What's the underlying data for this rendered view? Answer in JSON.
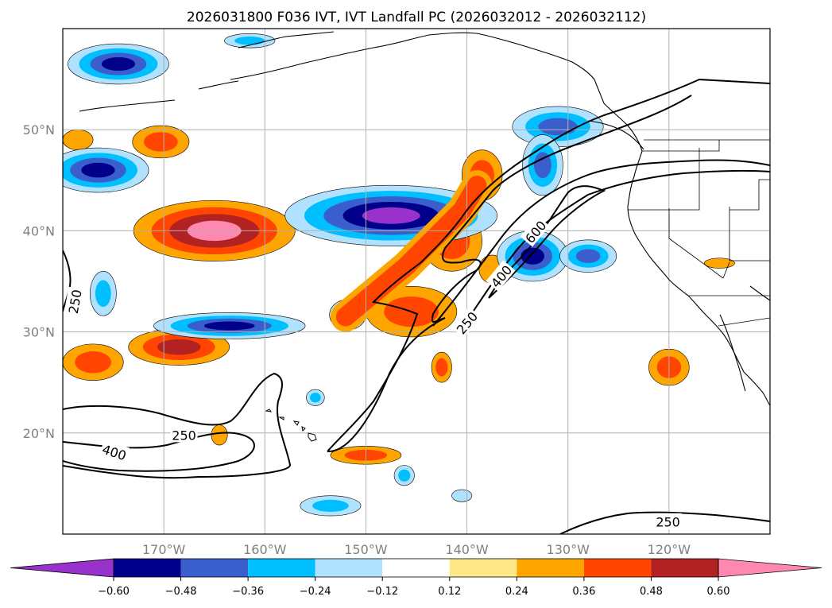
{
  "chart_data": {
    "type": "filled-contour-map",
    "title": "2026031800 F036 IVT, IVT Landfall PC (2026032012 - 2026032112)",
    "lon_range": [
      -180,
      -110
    ],
    "lat_range": [
      10,
      60
    ],
    "grid": true,
    "lat_ticks": [
      {
        "value": 50,
        "label": "50°N"
      },
      {
        "value": 40,
        "label": "40°N"
      },
      {
        "value": 30,
        "label": "30°N"
      },
      {
        "value": 20,
        "label": "20°N"
      }
    ],
    "lon_ticks": [
      {
        "value": -170,
        "label": "170°W"
      },
      {
        "value": -160,
        "label": "160°W"
      },
      {
        "value": -150,
        "label": "150°W"
      },
      {
        "value": -140,
        "label": "140°W"
      },
      {
        "value": -130,
        "label": "130°W"
      },
      {
        "value": -120,
        "label": "120°W"
      }
    ],
    "colorbar": {
      "extend": "both",
      "levels": [
        -0.6,
        -0.48,
        -0.36,
        -0.24,
        -0.12,
        0.12,
        0.24,
        0.36,
        0.48,
        0.6
      ],
      "labels": [
        "−0.60",
        "−0.48",
        "−0.36",
        "−0.24",
        "−0.12",
        "0.12",
        "0.24",
        "0.36",
        "0.48",
        "0.60"
      ],
      "colors": [
        "#9932cc",
        "#00008b",
        "#3a5fcd",
        "#00bfff",
        "#b0e2ff",
        "#ffffff",
        "#ffe888",
        "#ffa500",
        "#ff4500",
        "#b22222",
        "#ff88b0"
      ]
    },
    "ivt_contours": [
      {
        "value": 250,
        "label": "250"
      },
      {
        "value": 400,
        "label": "400"
      },
      {
        "value": 600,
        "label": "600"
      }
    ],
    "contour_label_instances": [
      {
        "label": "250",
        "lon": -178.8,
        "lat": 33.0,
        "rotate": -80
      },
      {
        "label": "250",
        "lon": -168.0,
        "lat": 19.8,
        "rotate": 0
      },
      {
        "label": "400",
        "lon": -174.9,
        "lat": 18.1,
        "rotate": 18
      },
      {
        "label": "250",
        "lon": -140.0,
        "lat": 30.9,
        "rotate": -50
      },
      {
        "label": "400",
        "lon": -136.6,
        "lat": 35.5,
        "rotate": -50
      },
      {
        "label": "600",
        "lon": -133.2,
        "lat": 39.9,
        "rotate": -50
      },
      {
        "label": "250",
        "lon": -120.1,
        "lat": 11.2,
        "rotate": 0
      }
    ],
    "pc_regions": [
      {
        "lon": -165,
        "lat": 40.0,
        "rlon": 8.0,
        "rlat": 3.0,
        "levels": [
          0.24,
          0.36,
          0.48,
          0.6
        ]
      },
      {
        "lon": -170.3,
        "lat": 48.8,
        "rlon": 2.8,
        "rlat": 1.6,
        "levels": [
          0.24,
          0.36
        ]
      },
      {
        "lon": -168.5,
        "lat": 28.5,
        "rlon": 5.0,
        "rlat": 1.8,
        "levels": [
          0.24,
          0.36,
          0.48
        ]
      },
      {
        "lon": -177.0,
        "lat": 27.0,
        "rlon": 3.0,
        "rlat": 1.8,
        "levels": [
          0.24,
          0.36
        ]
      },
      {
        "lon": -145.5,
        "lat": 32.0,
        "rlon": 4.5,
        "rlat": 2.5,
        "levels": [
          0.24,
          0.36
        ]
      },
      {
        "lon": -141.5,
        "lat": 39.0,
        "rlon": 3.0,
        "rlat": 3.0,
        "levels": [
          0.24,
          0.36
        ]
      },
      {
        "lon": -138.5,
        "lat": 45.5,
        "rlon": 2.0,
        "rlat": 2.5,
        "levels": [
          0.24,
          0.36
        ]
      },
      {
        "lon": -137.5,
        "lat": 36.2,
        "rlon": 1.3,
        "rlat": 1.4,
        "levels": [
          0.24
        ]
      },
      {
        "lon": -142.5,
        "lat": 26.5,
        "rlon": 1.0,
        "rlat": 1.5,
        "levels": [
          0.24,
          0.36
        ]
      },
      {
        "lon": -164.5,
        "lat": 19.8,
        "rlon": 0.8,
        "rlat": 1.0,
        "levels": [
          0.24
        ]
      },
      {
        "lon": -150.0,
        "lat": 17.8,
        "rlon": 3.5,
        "rlat": 0.9,
        "levels": [
          0.24,
          0.36
        ]
      },
      {
        "lon": -115.0,
        "lat": 36.8,
        "rlon": 1.5,
        "rlat": 0.5,
        "levels": [
          0.24
        ]
      },
      {
        "lon": -120.0,
        "lat": 26.5,
        "rlon": 2.0,
        "rlat": 1.8,
        "levels": [
          0.24,
          0.36
        ]
      },
      {
        "lon": -178.5,
        "lat": 49.0,
        "rlon": 1.5,
        "rlat": 1.0,
        "levels": [
          0.24
        ]
      }
    ],
    "nc_regions": [
      {
        "lon": -147.5,
        "lat": 41.5,
        "rlon": 10.5,
        "rlat": 3.0,
        "levels": [
          -0.12,
          -0.24,
          -0.36,
          -0.48,
          -0.6
        ]
      },
      {
        "lon": -176.5,
        "lat": 46.0,
        "rlon": 5.0,
        "rlat": 2.2,
        "levels": [
          -0.12,
          -0.24,
          -0.36,
          -0.48
        ]
      },
      {
        "lon": -174.5,
        "lat": 56.5,
        "rlon": 5.0,
        "rlat": 2.0,
        "levels": [
          -0.12,
          -0.24,
          -0.36,
          -0.48
        ]
      },
      {
        "lon": -131.0,
        "lat": 50.3,
        "rlon": 4.5,
        "rlat": 2.0,
        "levels": [
          -0.12,
          -0.24,
          -0.36
        ]
      },
      {
        "lon": -132.5,
        "lat": 46.5,
        "rlon": 2.0,
        "rlat": 3.0,
        "levels": [
          -0.12,
          -0.24,
          -0.36
        ]
      },
      {
        "lon": -133.5,
        "lat": 37.5,
        "rlon": 3.5,
        "rlat": 2.5,
        "levels": [
          -0.12,
          -0.24,
          -0.36,
          -0.48
        ]
      },
      {
        "lon": -128.0,
        "lat": 37.5,
        "rlon": 2.8,
        "rlat": 1.6,
        "levels": [
          -0.12,
          -0.24,
          -0.36
        ]
      },
      {
        "lon": -163.5,
        "lat": 30.6,
        "rlon": 7.5,
        "rlat": 1.3,
        "levels": [
          -0.12,
          -0.24,
          -0.36,
          -0.48
        ]
      },
      {
        "lon": -176.0,
        "lat": 33.8,
        "rlon": 1.3,
        "rlat": 2.2,
        "levels": [
          -0.12,
          -0.24
        ]
      },
      {
        "lon": -153.5,
        "lat": 12.8,
        "rlon": 3.0,
        "rlat": 1.0,
        "levels": [
          -0.12,
          -0.24
        ]
      },
      {
        "lon": -151.8,
        "lat": 31.7,
        "rlon": 1.8,
        "rlat": 1.5,
        "levels": [
          -0.12,
          -0.24
        ]
      },
      {
        "lon": -155.0,
        "lat": 23.5,
        "rlon": 0.9,
        "rlat": 0.8,
        "levels": [
          -0.12,
          -0.24
        ]
      },
      {
        "lon": -146.2,
        "lat": 15.8,
        "rlon": 1.0,
        "rlat": 1.0,
        "levels": [
          -0.12,
          -0.24
        ]
      },
      {
        "lon": -161.5,
        "lat": 58.8,
        "rlon": 2.5,
        "rlat": 0.7,
        "levels": [
          -0.12,
          -0.24
        ]
      },
      {
        "lon": -140.5,
        "lat": 13.8,
        "rlon": 1.0,
        "rlat": 0.6,
        "levels": [
          -0.12
        ]
      }
    ]
  }
}
